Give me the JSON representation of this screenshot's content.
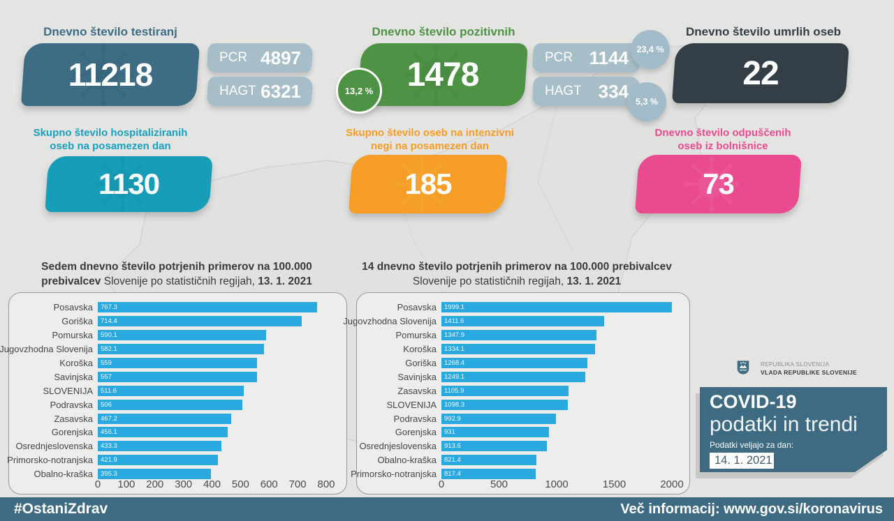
{
  "colors": {
    "background": "#e4e4e2",
    "slate": "#3d6c84",
    "light_blue_gray": "#a7bec9",
    "green": "#4e9345",
    "dark": "#333e46",
    "teal": "#189db8",
    "orange": "#f59d26",
    "pink": "#e94a90",
    "bar_blue": "#2aa9e0",
    "footer": "#3e6b81"
  },
  "top_stats": [
    {
      "title": "Dnevno število testiranj",
      "value": "11218",
      "sub": [
        {
          "label": "PCR",
          "value": "4897"
        },
        {
          "label": "HAGT",
          "value": "6321"
        }
      ]
    },
    {
      "title": "Dnevno število pozitivnih",
      "value": "1478",
      "badge": "13,2 %",
      "sub": [
        {
          "label": "PCR",
          "value": "1144",
          "badge": "23,4 %"
        },
        {
          "label": "HAGT",
          "value": "334",
          "badge": "5,3 %"
        }
      ]
    },
    {
      "title": "Dnevno število umrlih oseb",
      "value": "22"
    }
  ],
  "mid_stats": [
    {
      "title_line1": "Skupno število hospitaliziranih",
      "title_line2": "oseb na posamezen dan",
      "value": "1130"
    },
    {
      "title_line1": "Skupno število oseb na intenzivni",
      "title_line2": "negi na posamezen dan",
      "value": "185"
    },
    {
      "title_line1": "Dnevno število odpuščenih",
      "title_line2": "oseb iz bolnišnice",
      "value": "73"
    }
  ],
  "chart_data": [
    {
      "type": "bar",
      "orientation": "horizontal",
      "title_l1": "Sedem dnevno število potrjenih primerov na 100.000",
      "title_l2_bold": "prebivalcev",
      "title_l2_normal": " Slovenije po statističnih regijah, ",
      "title_l2_date": "13. 1. 2021",
      "categories": [
        "Posavska",
        "Goriška",
        "Pomurska",
        "Jugovzhodna Slovenija",
        "Koroška",
        "Savinjska",
        "SLOVENIJA",
        "Podravska",
        "Zasavska",
        "Gorenjska",
        "Osrednjeslovenska",
        "Primorsko-notranjska",
        "Obalno-kraška"
      ],
      "values": [
        767.3,
        714.4,
        590.1,
        582.1,
        559,
        557,
        511.6,
        506,
        467.2,
        456.1,
        433.3,
        421.9,
        395.3
      ],
      "value_labels": [
        "767.3",
        "714.4",
        "590.1",
        "582.1",
        "559",
        "557",
        "511.6",
        "506",
        "467.2",
        "456.1",
        "433.3",
        "421.9",
        "395.3"
      ],
      "xlim": [
        0,
        800
      ],
      "xticks": [
        0,
        100,
        200,
        300,
        400,
        500,
        600,
        700,
        800
      ]
    },
    {
      "type": "bar",
      "orientation": "horizontal",
      "title_l1": "14 dnevno število potrjenih primerov na 100.000 prebivalcev",
      "title_l2_bold": "",
      "title_l2_normal": "Slovenije po statističnih regijah, ",
      "title_l2_date": "13. 1. 2021",
      "categories": [
        "Posavska",
        "Jugovzhodna Slovenija",
        "Pomurska",
        "Koroška",
        "Goriška",
        "Savinjska",
        "Zasavska",
        "SLOVENIJA",
        "Podravska",
        "Gorenjska",
        "Osrednjeslovenska",
        "Obalno-kraška",
        "Primorsko-notranjska"
      ],
      "values": [
        1999.1,
        1411.6,
        1347.9,
        1334.1,
        1268.4,
        1249.1,
        1105.9,
        1098.3,
        992.9,
        931,
        913.6,
        821.4,
        817.4
      ],
      "value_labels": [
        "1999.1",
        "1411.6",
        "1347.9",
        "1334.1",
        "1268.4",
        "1249.1",
        "1105.9",
        "1098.3",
        "992.9",
        "931",
        "913.6",
        "821.4",
        "817.4"
      ],
      "xlim": [
        0,
        2000
      ],
      "xticks": [
        0,
        500,
        1000,
        1500,
        2000
      ]
    }
  ],
  "branding": {
    "gov_line1": "REPUBLIKA SLOVENIJA",
    "gov_line2": "VLADA REPUBLIKE SLOVENIJE",
    "box_title": "COVID-19",
    "box_subtitle": "podatki in trendi",
    "box_label": "Podatki veljajo za dan:",
    "box_date": "14. 1. 2021"
  },
  "footer": {
    "left": "#OstaniZdrav",
    "right": "Več informacij: www.gov.si/koronavirus"
  }
}
